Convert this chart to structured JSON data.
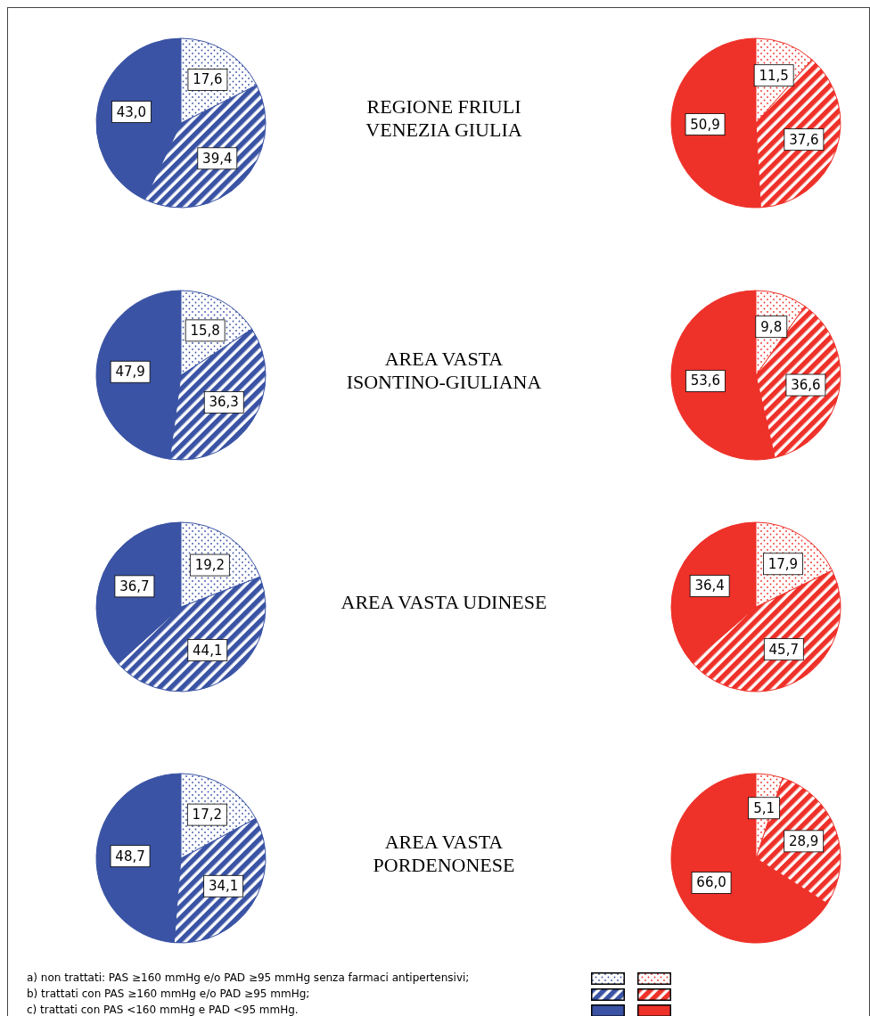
{
  "chart_data": [
    {
      "type": "pie",
      "title": "REGIONE FRIULI VENEZIA GIULIA",
      "categories": [
        null,
        null,
        null
      ],
      "values": [
        43.0,
        39.4,
        17.6
      ],
      "value_labels": [
        "43,0",
        "39,4",
        "17,6"
      ],
      "colors": [
        "#3a53a4",
        "#3a53a4",
        "#3a53a4"
      ]
    },
    {
      "type": "pie",
      "categories": [
        null,
        null,
        null
      ],
      "values": [
        50.9,
        37.6,
        11.5
      ],
      "value_labels": [
        "50,9",
        "37,6",
        "11,5"
      ],
      "colors": [
        "#ee3129",
        "#ee3129",
        "#ee3129"
      ]
    },
    {
      "type": "pie",
      "title": "AREA VASTA ISONTINO-GIULIANA",
      "categories": [
        null,
        null,
        null
      ],
      "values": [
        47.9,
        36.3,
        15.8
      ],
      "value_labels": [
        "47,9",
        "36,3",
        "15,8"
      ],
      "colors": [
        "#3a53a4",
        "#3a53a4",
        "#3a53a4"
      ]
    },
    {
      "type": "pie",
      "categories": [
        null,
        null,
        null
      ],
      "values": [
        53.6,
        36.6,
        9.8
      ],
      "value_labels": [
        "53,6",
        "36,6",
        "9,8"
      ],
      "colors": [
        "#ee3129",
        "#ee3129",
        "#ee3129"
      ]
    },
    {
      "type": "pie",
      "title": "AREA VASTA UDINESE",
      "categories": [
        null,
        null,
        null
      ],
      "values": [
        36.7,
        44.1,
        19.2
      ],
      "value_labels": [
        "36,7",
        "44,1",
        "19,2"
      ],
      "colors": [
        "#3a53a4",
        "#3a53a4",
        "#3a53a4"
      ]
    },
    {
      "type": "pie",
      "categories": [
        null,
        null,
        null
      ],
      "values": [
        36.4,
        45.7,
        17.9
      ],
      "value_labels": [
        "36,4",
        "45,7",
        "17,9"
      ],
      "colors": [
        "#ee3129",
        "#ee3129",
        "#ee3129"
      ]
    },
    {
      "type": "pie",
      "title": "AREA VASTA PORDENONESE",
      "categories": [
        null,
        null,
        null
      ],
      "values": [
        48.7,
        34.1,
        17.2
      ],
      "value_labels": [
        "48,7",
        "34,1",
        "17,2"
      ],
      "colors": [
        "#3a53a4",
        "#3a53a4",
        "#3a53a4"
      ]
    },
    {
      "type": "pie",
      "categories": [
        null,
        null,
        null
      ],
      "values": [
        66.0,
        28.9,
        5.1
      ],
      "value_labels": [
        "66,0",
        "28,9",
        "5,1"
      ],
      "colors": [
        "#ee3129",
        "#ee3129",
        "#ee3129"
      ]
    },
    {
      "type": "other",
      "annotations": [
        "a) non trattati: PAS ≥160 mmHg e/o PAD ≥95 mmHg senza farmaci antipertensivi;",
        "b) trattati con PAS ≥160 mmHg e/o PAD ≥95 mmHg;",
        "c) trattati con PAS <160 mmHg e PAD <95 mmHg."
      ]
    }
  ]
}
